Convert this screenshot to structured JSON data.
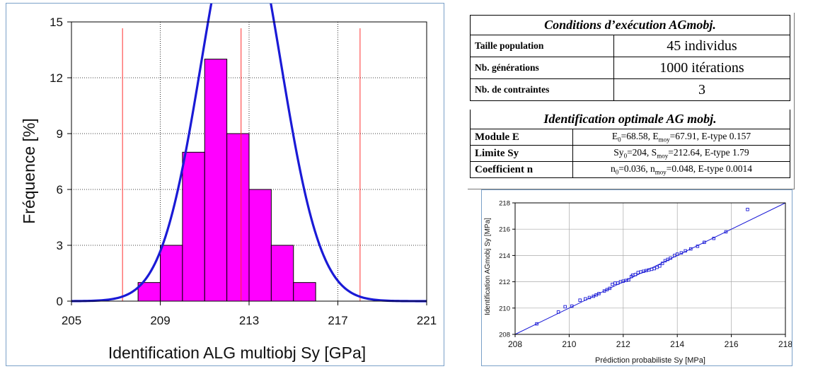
{
  "histogram_chart": {
    "ylabel": "Fréquence [%]",
    "xlabel": "Identification ALG multiobj Sy [GPa]",
    "x_ticks": [
      "205",
      "209",
      "213",
      "217",
      "221"
    ],
    "y_ticks": [
      "0",
      "3",
      "6",
      "9",
      "12",
      "15"
    ]
  },
  "qq_chart": {
    "ylabel": "Identification AGmobj Sy [MPa]",
    "xlabel": "Prédiction probabiliste Sy [MPa]",
    "x_ticks": [
      "208",
      "210",
      "212",
      "214",
      "216",
      "218"
    ],
    "y_ticks": [
      "208",
      "210",
      "212",
      "214",
      "216",
      "218"
    ]
  },
  "chart_data": [
    {
      "type": "bar",
      "xlabel": "Identification ALG multiobj Sy [GPa]",
      "ylabel": "Fréquence [%]",
      "xlim": [
        205,
        221
      ],
      "ylim": [
        0,
        15
      ],
      "bins": [
        {
          "x0": 208,
          "x1": 209,
          "value": 1
        },
        {
          "x0": 209,
          "x1": 210,
          "value": 3
        },
        {
          "x0": 210,
          "x1": 211,
          "value": 8
        },
        {
          "x0": 211,
          "x1": 212,
          "value": 13
        },
        {
          "x0": 212,
          "x1": 213,
          "value": 9
        },
        {
          "x0": 213,
          "x1": 214,
          "value": 6
        },
        {
          "x0": 214,
          "x1": 215,
          "value": 3
        },
        {
          "x0": 215,
          "x1": 216,
          "value": 1
        }
      ],
      "normal_fit": {
        "mean": 212.64,
        "sd": 1.79
      },
      "reference_lines": [
        207.3,
        212.64,
        218.0
      ],
      "grid": true,
      "colors": {
        "bars": "#ff00ff",
        "curve": "#1a1ad6",
        "ref_lines": "#ff3030"
      }
    },
    {
      "type": "scatter",
      "xlabel": "Prédiction probabiliste Sy [MPa]",
      "ylabel": "Identification AGmobj Sy [MPa]",
      "xlim": [
        208,
        218
      ],
      "ylim": [
        208,
        218
      ],
      "fit_line": [
        [
          208,
          208
        ],
        [
          218,
          218
        ]
      ],
      "x": [
        208.8,
        209.6,
        209.85,
        210.1,
        210.4,
        210.6,
        210.75,
        210.9,
        211.0,
        211.1,
        211.3,
        211.4,
        211.5,
        211.6,
        211.7,
        211.8,
        211.9,
        212.0,
        212.1,
        212.2,
        212.3,
        212.35,
        212.45,
        212.55,
        212.65,
        212.75,
        212.85,
        212.95,
        213.05,
        213.15,
        213.25,
        213.35,
        213.45,
        213.55,
        213.65,
        213.75,
        213.9,
        214.0,
        214.15,
        214.3,
        214.5,
        214.75,
        215.0,
        215.35,
        215.8,
        216.6
      ],
      "y": [
        208.8,
        209.7,
        210.1,
        210.15,
        210.6,
        210.7,
        210.8,
        210.9,
        211.0,
        211.1,
        211.3,
        211.4,
        211.5,
        211.8,
        211.9,
        211.9,
        212.0,
        212.05,
        212.1,
        212.15,
        212.4,
        212.5,
        212.55,
        212.7,
        212.75,
        212.8,
        212.85,
        212.9,
        212.95,
        213.0,
        213.1,
        213.2,
        213.4,
        213.6,
        213.7,
        213.8,
        214.0,
        214.1,
        214.2,
        214.35,
        214.5,
        214.7,
        215.0,
        215.3,
        215.8,
        217.5
      ],
      "grid": true,
      "colors": {
        "points": "#1a1ad6",
        "line": "#1a1ad6"
      }
    }
  ],
  "conditions_table": {
    "title1": "Conditions d’exécution AGmobj.",
    "rows_exec": [
      {
        "label": "Taille population",
        "value": "45 individus"
      },
      {
        "label": "Nb. générations",
        "value": "1000 itérations"
      },
      {
        "label": "Nb. de contraintes",
        "value": "3"
      }
    ],
    "title2": "Identification optimale AG mobj.",
    "rows_ident": [
      {
        "label": "Module E",
        "sym": "E",
        "sub1": "0",
        "v1": "=68.58, E",
        "sub2": "moy",
        "v2": "=67.91, E-type 0.157"
      },
      {
        "label": "Limite Sy",
        "sym": "Sy",
        "sub1": "0",
        "v1": "=204, S",
        "sub2": "moy",
        "v2": "=212.64, E-type 1.79"
      },
      {
        "label": "Coefficient n",
        "sym": "n",
        "sub1": "0",
        "v1": "=0.036, n",
        "sub2": "moy",
        "v2": "=0.048, E-type 0.0014"
      }
    ]
  }
}
